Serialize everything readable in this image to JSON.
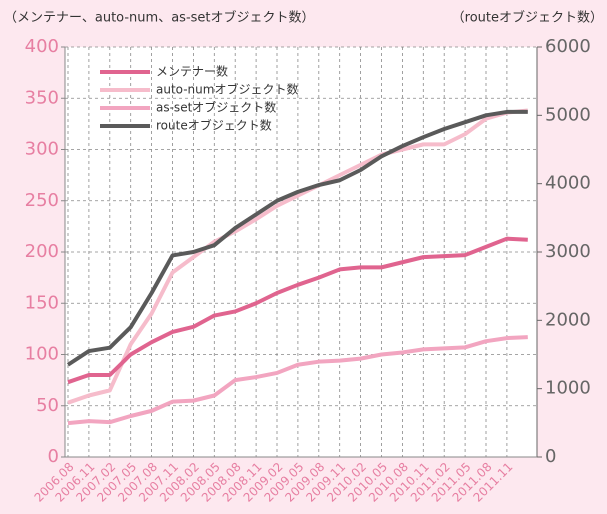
{
  "chart_data": {
    "type": "line",
    "y_axis_label": "（メンテナー、auto-num、as-setオブジェクト数）",
    "y2_axis_label": "（routeオブジェクト数）",
    "categories": [
      "2006.08",
      "2006.11",
      "2007.02",
      "2007.05",
      "2007.08",
      "2007.11",
      "2008.02",
      "2008.05",
      "2008.08",
      "2008.11",
      "2009.02",
      "2009.05",
      "2009.08",
      "2009.11",
      "2010.02",
      "2010.05",
      "2010.08",
      "2010.11",
      "2011.02",
      "2011.05",
      "2011.08",
      "2011.11",
      null
    ],
    "series": [
      {
        "name": "メンテナー数",
        "color": "#e0648f",
        "values": [
          73,
          80,
          80,
          100,
          112,
          122,
          127,
          138,
          142,
          150,
          160,
          168,
          175,
          183,
          185,
          185,
          190,
          195,
          196,
          197,
          205,
          213,
          212
        ]
      },
      {
        "name": "auto-numオブジェクト数",
        "color": "#f6bccb",
        "values": [
          53,
          60,
          65,
          110,
          140,
          180,
          195,
          210,
          220,
          232,
          245,
          255,
          265,
          275,
          285,
          295,
          300,
          305,
          305,
          315,
          330,
          336,
          338
        ]
      },
      {
        "name": "as-setオブジェクト数",
        "color": "#f2a5c0",
        "values": [
          33,
          35,
          34,
          40,
          45,
          54,
          55,
          60,
          75,
          78,
          82,
          90,
          93,
          94,
          96,
          100,
          102,
          105,
          106,
          107,
          113,
          116,
          117
        ]
      },
      {
        "name": "routeオブジェクト数",
        "color": "#5a5a5a",
        "axis": "y2",
        "values": [
          1350,
          1550,
          1600,
          1900,
          2400,
          2950,
          3000,
          3100,
          3350,
          3550,
          3750,
          3880,
          3980,
          4050,
          4200,
          4400,
          4550,
          4680,
          4800,
          4900,
          5000,
          5050,
          5050
        ]
      }
    ],
    "ylim": [
      0,
      400
    ],
    "yticks": [
      0,
      50,
      100,
      150,
      200,
      250,
      300,
      350,
      400
    ],
    "y2lim": [
      0,
      6000
    ],
    "y2ticks": [
      0,
      1000,
      2000,
      3000,
      4000,
      5000,
      6000
    ],
    "grid": true,
    "legend": "upper left"
  }
}
